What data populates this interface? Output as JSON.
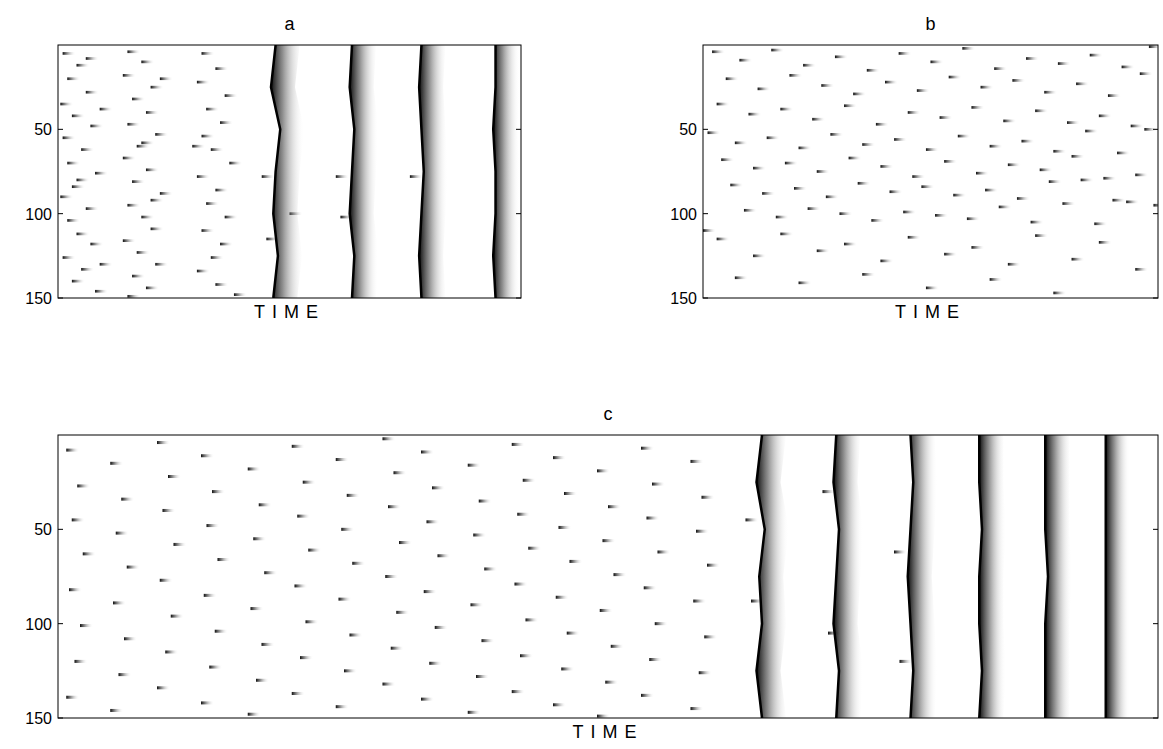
{
  "chart_data": [
    {
      "type": "raster",
      "title": "a",
      "x_label": "TIME",
      "xlim": [
        0,
        100
      ],
      "ylim": [
        0,
        150
      ],
      "yticks": [
        50,
        100,
        150
      ],
      "tick_labels": "y",
      "spikes": {
        "x": [
          1,
          4,
          2,
          6,
          0.5,
          3,
          7,
          1,
          5,
          2,
          8,
          3,
          0.5,
          6,
          2,
          4,
          7,
          1,
          5,
          3,
          8,
          6,
          9,
          4,
          9,
          15,
          18,
          14,
          20,
          16,
          19,
          15,
          21,
          17,
          14,
          19,
          16,
          22,
          15,
          18,
          20,
          14,
          17,
          21,
          16,
          19,
          15,
          22,
          18,
          20,
          31,
          34,
          30,
          36,
          32,
          35,
          31,
          33,
          37,
          30,
          34,
          32,
          36,
          31,
          35,
          33,
          30,
          34,
          38,
          29,
          44,
          50,
          45,
          60,
          61,
          76
        ],
        "y": [
          5,
          12,
          20,
          28,
          35,
          42,
          48,
          55,
          62,
          70,
          76,
          84,
          90,
          97,
          104,
          112,
          118,
          126,
          133,
          140,
          146,
          8,
          38,
          80,
          130,
          4,
          10,
          18,
          25,
          32,
          40,
          47,
          53,
          60,
          67,
          74,
          81,
          88,
          95,
          102,
          109,
          116,
          123,
          130,
          137,
          144,
          149,
          20,
          58,
          92,
          5,
          14,
          22,
          30,
          38,
          46,
          54,
          62,
          70,
          78,
          86,
          94,
          102,
          110,
          118,
          126,
          134,
          142,
          148,
          60,
          78,
          100,
          115,
          78,
          102,
          78
        ]
      },
      "fronts": [
        {
          "x": [
            47,
            46,
            48,
            47,
            46.5,
            47.5,
            46.5
          ],
          "y": [
            0,
            25,
            50,
            75,
            100,
            125,
            150
          ]
        },
        {
          "x": [
            63.5,
            63,
            64,
            63.5,
            63,
            64,
            63.5
          ],
          "y": [
            0,
            25,
            50,
            75,
            100,
            125,
            150
          ]
        },
        {
          "x": [
            78.5,
            78,
            78.5,
            79,
            78.5,
            78,
            78.5
          ],
          "y": [
            0,
            25,
            50,
            75,
            100,
            125,
            150
          ]
        },
        {
          "x": [
            94.5,
            94.5,
            94,
            94.5,
            94.5,
            94,
            94.5
          ],
          "y": [
            0,
            25,
            50,
            75,
            100,
            125,
            150
          ]
        }
      ]
    },
    {
      "type": "raster",
      "title": "b",
      "x_label": "TIME",
      "xlim": [
        0,
        100
      ],
      "ylim": [
        0,
        150
      ],
      "yticks": [
        50,
        100,
        150
      ],
      "tick_labels": "y",
      "spikes": {
        "x": [
          2,
          8,
          15,
          22,
          29,
          36,
          43,
          50,
          57,
          64,
          71,
          78,
          85,
          92,
          98,
          5,
          12,
          19,
          26,
          33,
          40,
          47,
          54,
          61,
          68,
          75,
          82,
          89,
          96,
          3,
          10,
          17,
          24,
          31,
          38,
          45,
          52,
          59,
          66,
          73,
          80,
          87,
          94,
          1,
          7,
          14,
          21,
          28,
          35,
          42,
          49,
          56,
          63,
          70,
          77,
          84,
          91,
          97,
          4,
          11,
          18,
          25,
          32,
          39,
          46,
          53,
          60,
          67,
          74,
          81,
          88,
          95,
          6,
          13,
          20,
          27,
          34,
          41,
          48,
          55,
          62,
          69,
          76,
          83,
          90,
          99,
          9,
          16,
          23,
          30,
          37,
          44,
          51,
          58,
          65,
          72,
          79,
          86,
          93,
          0,
          3,
          17,
          31,
          45,
          59,
          73,
          87,
          11,
          25,
          39,
          53,
          67,
          81,
          95,
          7,
          21,
          35,
          49,
          63,
          77
        ],
        "y": [
          4,
          9,
          3,
          12,
          7,
          15,
          5,
          10,
          2,
          14,
          8,
          11,
          6,
          13,
          1,
          20,
          26,
          18,
          24,
          29,
          22,
          27,
          19,
          25,
          21,
          28,
          23,
          30,
          17,
          35,
          41,
          38,
          44,
          36,
          47,
          40,
          43,
          37,
          45,
          39,
          46,
          42,
          48,
          52,
          58,
          55,
          61,
          53,
          59,
          56,
          62,
          54,
          60,
          57,
          63,
          51,
          64,
          50,
          68,
          73,
          70,
          75,
          67,
          72,
          78,
          69,
          76,
          71,
          74,
          66,
          79,
          77,
          83,
          88,
          85,
          90,
          82,
          87,
          84,
          89,
          86,
          91,
          81,
          80,
          92,
          95,
          98,
          102,
          97,
          100,
          104,
          99,
          101,
          103,
          96,
          105,
          94,
          106,
          93,
          110,
          115,
          112,
          118,
          114,
          120,
          113,
          117,
          125,
          122,
          128,
          124,
          130,
          127,
          133,
          138,
          141,
          136,
          144,
          139,
          147
        ]
      }
    },
    {
      "type": "raster",
      "title": "c",
      "x_label": "TIME",
      "xlim": [
        0,
        200
      ],
      "ylim": [
        0,
        150
      ],
      "yticks": [
        50,
        100,
        150
      ],
      "tick_labels": "y",
      "spikes": {
        "x": [
          1.5,
          3.5,
          2.5,
          4.5,
          2,
          4,
          3,
          1.5,
          9.5,
          11.5,
          10.5,
          12.5,
          10,
          12,
          11,
          9.5,
          18,
          20,
          19,
          21,
          18.5,
          20.5,
          19.5,
          18,
          26,
          28,
          27,
          29,
          26.5,
          28.5,
          27.5,
          26,
          34.5,
          36.5,
          35.5,
          37.5,
          35,
          37,
          36,
          34.5,
          42.5,
          44.5,
          43.5,
          45.5,
          43,
          45,
          44,
          42.5,
          50.5,
          52.5,
          51.5,
          53.5,
          51,
          53,
          52,
          50.5,
          59,
          61,
          60,
          62,
          59.5,
          61.5,
          60.5,
          59,
          66,
          68,
          67,
          69,
          66.5,
          68.5,
          67.5,
          66,
          74.5,
          76.5,
          75.5,
          77.5,
          75,
          77,
          76,
          74.5,
          82.5,
          84.5,
          83.5,
          85.5,
          83,
          85,
          84,
          82.5,
          90,
          92,
          91,
          93,
          90.5,
          92.5,
          91.5,
          90,
          98,
          100,
          99,
          101,
          98.5,
          100.5,
          99.5,
          98,
          106,
          108,
          107,
          109,
          106.5,
          108.5,
          107.5,
          106,
          115,
          117,
          116,
          118,
          115.5,
          117.5,
          116.5,
          115,
          125,
          126,
          139,
          140,
          152,
          153
        ],
        "y": [
          8,
          27,
          45,
          63,
          82,
          101,
          120,
          139,
          15,
          34,
          52,
          70,
          89,
          108,
          127,
          146,
          4,
          22,
          40,
          58,
          77,
          96,
          115,
          134,
          11,
          30,
          48,
          66,
          85,
          104,
          123,
          142,
          18,
          37,
          55,
          73,
          92,
          111,
          130,
          148,
          6,
          25,
          43,
          61,
          80,
          99,
          118,
          137,
          13,
          32,
          50,
          68,
          87,
          106,
          125,
          144,
          2,
          20,
          38,
          57,
          75,
          94,
          113,
          132,
          9,
          28,
          46,
          64,
          83,
          102,
          121,
          140,
          16,
          35,
          53,
          71,
          90,
          109,
          128,
          147,
          5,
          24,
          42,
          60,
          79,
          98,
          117,
          136,
          12,
          31,
          49,
          67,
          86,
          105,
          124,
          143,
          19,
          38,
          56,
          74,
          93,
          112,
          131,
          149,
          7,
          26,
          44,
          62,
          81,
          100,
          119,
          138,
          14,
          33,
          51,
          69,
          88,
          107,
          126,
          145,
          45,
          88,
          30,
          105,
          62,
          120
        ]
      },
      "fronts": [
        {
          "x": [
            128,
            127,
            128.5,
            127.5,
            128,
            127,
            128
          ],
          "y": [
            0,
            25,
            50,
            75,
            100,
            125,
            150
          ]
        },
        {
          "x": [
            141.5,
            141,
            142,
            141.5,
            141,
            142,
            141.5
          ],
          "y": [
            0,
            25,
            50,
            75,
            100,
            125,
            150
          ]
        },
        {
          "x": [
            155,
            155.5,
            155,
            154.5,
            155,
            155.5,
            155
          ],
          "y": [
            0,
            25,
            50,
            75,
            100,
            125,
            150
          ]
        },
        {
          "x": [
            167.5,
            167.5,
            168,
            167.5,
            167.5,
            168,
            167.5
          ],
          "y": [
            0,
            25,
            50,
            75,
            100,
            125,
            150
          ]
        },
        {
          "x": [
            179.5,
            179.5,
            179.5,
            180,
            179.5,
            179.5,
            179.5
          ],
          "y": [
            0,
            25,
            50,
            75,
            100,
            125,
            150
          ]
        },
        {
          "x": [
            190.5,
            190.5,
            190.5,
            190.5,
            190.5,
            190.5,
            190.5
          ],
          "y": [
            0,
            25,
            50,
            75,
            100,
            125,
            150
          ]
        }
      ]
    }
  ]
}
